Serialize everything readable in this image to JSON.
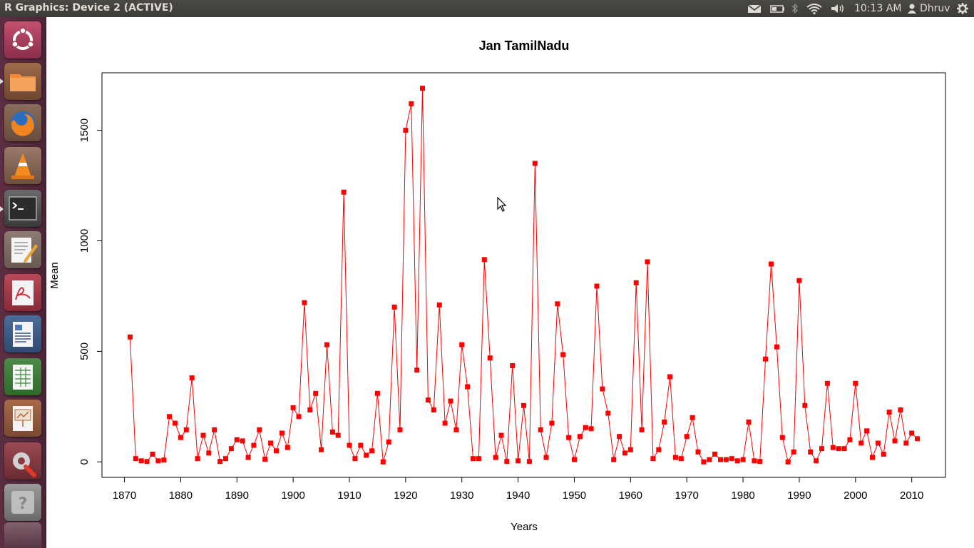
{
  "window": {
    "title": "R Graphics: Device 2 (ACTIVE)"
  },
  "panel": {
    "clock": "10:13 AM",
    "user": "Dhruv",
    "icons": [
      "mail-icon",
      "battery-icon",
      "bluetooth-icon",
      "wifi-icon",
      "volume-icon",
      "user-icon",
      "gear-icon"
    ]
  },
  "launcher": {
    "items": [
      "ubuntu-dash",
      "files",
      "firefox",
      "vlc",
      "terminal",
      "text-editor",
      "pdf-viewer",
      "libreoffice-writer",
      "libreoffice-calc",
      "libreoffice-impress",
      "system-settings",
      "unknown-app"
    ]
  },
  "colors": {
    "series": "#ff0000",
    "panel": "#3c3b37",
    "launcher": "#4b2437"
  },
  "chart_data": {
    "type": "line",
    "title": "Jan TamilNadu",
    "xlabel": "Years",
    "ylabel": "Mean",
    "xlim": [
      1866,
      2016
    ],
    "ylim": [
      -70,
      1760
    ],
    "xticks": [
      1870,
      1880,
      1890,
      1900,
      1910,
      1920,
      1930,
      1940,
      1950,
      1960,
      1970,
      1980,
      1990,
      2000,
      2010
    ],
    "yticks": [
      0,
      500,
      1000,
      1500
    ],
    "grid": false,
    "legend": "none",
    "x": [
      1871,
      1872,
      1873,
      1874,
      1875,
      1876,
      1877,
      1878,
      1879,
      1880,
      1881,
      1882,
      1883,
      1884,
      1885,
      1886,
      1887,
      1888,
      1889,
      1890,
      1891,
      1892,
      1893,
      1894,
      1895,
      1896,
      1897,
      1898,
      1899,
      1900,
      1901,
      1902,
      1903,
      1904,
      1905,
      1906,
      1907,
      1908,
      1909,
      1910,
      1911,
      1912,
      1913,
      1914,
      1915,
      1916,
      1917,
      1918,
      1919,
      1920,
      1921,
      1922,
      1923,
      1924,
      1925,
      1926,
      1927,
      1928,
      1929,
      1930,
      1931,
      1932,
      1933,
      1934,
      1935,
      1936,
      1937,
      1938,
      1939,
      1940,
      1941,
      1942,
      1943,
      1944,
      1945,
      1946,
      1947,
      1948,
      1949,
      1950,
      1951,
      1952,
      1953,
      1954,
      1955,
      1956,
      1957,
      1958,
      1959,
      1960,
      1961,
      1962,
      1963,
      1964,
      1965,
      1966,
      1967,
      1968,
      1969,
      1970,
      1971,
      1972,
      1973,
      1974,
      1975,
      1976,
      1977,
      1978,
      1979,
      1980,
      1981,
      1982,
      1983,
      1984,
      1985,
      1986,
      1987,
      1988,
      1989,
      1990,
      1991,
      1992,
      1993,
      1994,
      1995,
      1996,
      1997,
      1998,
      1999,
      2000,
      2001,
      2002,
      2003,
      2004,
      2005,
      2006,
      2007,
      2008,
      2009,
      2010,
      2011
    ],
    "series": [
      {
        "values": [
          565,
          15,
          5,
          2,
          35,
          5,
          8,
          205,
          175,
          110,
          145,
          380,
          15,
          120,
          40,
          145,
          2,
          15,
          60,
          100,
          95,
          20,
          75,
          145,
          12,
          85,
          50,
          130,
          65,
          245,
          205,
          720,
          235,
          310,
          55,
          530,
          135,
          120,
          1220,
          75,
          15,
          75,
          30,
          50,
          310,
          0,
          90,
          700,
          145,
          1500,
          1620,
          415,
          1690,
          280,
          235,
          710,
          175,
          275,
          145,
          530,
          340,
          15,
          15,
          915,
          470,
          20,
          120,
          2,
          435,
          5,
          255,
          2,
          1350,
          145,
          20,
          175,
          715,
          485,
          110,
          10,
          115,
          155,
          150,
          795,
          330,
          220,
          10,
          115,
          40,
          55,
          810,
          145,
          905,
          15,
          55,
          180,
          385,
          20,
          15,
          115,
          200,
          45,
          0,
          10,
          35,
          10,
          10,
          15,
          5,
          10,
          180,
          5,
          2,
          465,
          895,
          520,
          110,
          0,
          45,
          820,
          255,
          45,
          5,
          60,
          355,
          65,
          60,
          60,
          100,
          355,
          85,
          140,
          20,
          85,
          35,
          225,
          95,
          235,
          85,
          130,
          105
        ]
      }
    ]
  }
}
